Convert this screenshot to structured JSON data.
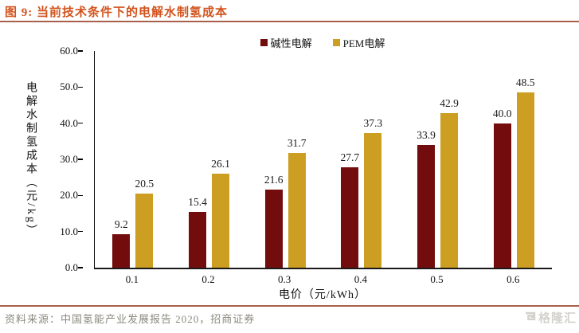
{
  "header": {
    "title": "图 9:  当前技术条件下的电解水制氢成本"
  },
  "chart_data": {
    "type": "bar",
    "title": "",
    "categories": [
      "0.1",
      "0.2",
      "0.3",
      "0.4",
      "0.5",
      "0.6"
    ],
    "series": [
      {
        "name": "碱性电解",
        "color": "#730d0d",
        "values": [
          9.2,
          15.4,
          21.6,
          27.7,
          33.9,
          40.0
        ]
      },
      {
        "name": "PEM电解",
        "color": "#cc9e22",
        "values": [
          20.5,
          26.1,
          31.7,
          37.3,
          42.9,
          48.5
        ]
      }
    ],
    "xlabel": "电价（元/kWh）",
    "ylabel": "电解水制氢成本（元/kg）",
    "ylim": [
      0,
      60
    ],
    "ytick_labels": [
      "60.0",
      "50.0",
      "40.0",
      "30.0",
      "20.0",
      "10.0",
      "0.0"
    ],
    "grid": false,
    "legend_position": "top-center",
    "value_label_decimals": 1
  },
  "footer": {
    "source": "资料来源：中国氢能产业发展报告 2020，招商证券",
    "logo_text": "格隆汇"
  },
  "colors": {
    "title": "#d2531d",
    "rule": "#a8604a",
    "axis": "#000000",
    "source_text": "#8b897e",
    "watermark": "#d3d2cc"
  }
}
